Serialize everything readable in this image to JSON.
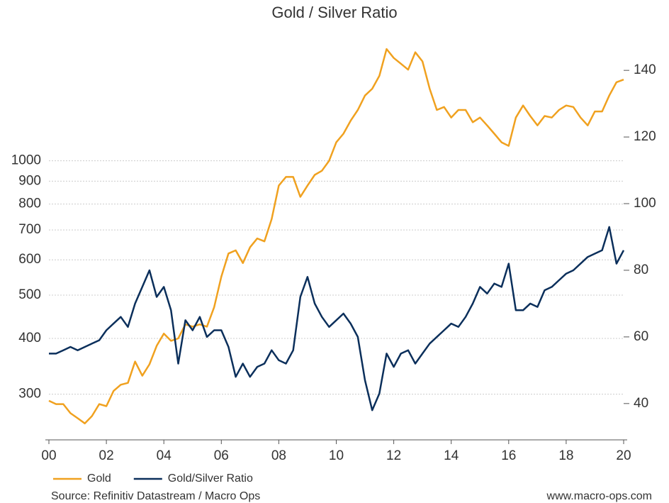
{
  "chart_data": {
    "type": "line",
    "title": "Gold / Silver Ratio",
    "source": "Source: Refinitiv Datastream / Macro Ops",
    "credit": "www.macro-ops.com",
    "x": [
      2000,
      2000.25,
      2000.5,
      2000.75,
      2001,
      2001.25,
      2001.5,
      2001.75,
      2002,
      2002.25,
      2002.5,
      2002.75,
      2003,
      2003.25,
      2003.5,
      2003.75,
      2004,
      2004.25,
      2004.5,
      2004.75,
      2005,
      2005.25,
      2005.5,
      2005.75,
      2006,
      2006.25,
      2006.5,
      2006.75,
      2007,
      2007.25,
      2007.5,
      2007.75,
      2008,
      2008.25,
      2008.5,
      2008.75,
      2009,
      2009.25,
      2009.5,
      2009.75,
      2010,
      2010.25,
      2010.5,
      2010.75,
      2011,
      2011.25,
      2011.5,
      2011.75,
      2012,
      2012.25,
      2012.5,
      2012.75,
      2013,
      2013.25,
      2013.5,
      2013.75,
      2014,
      2014.25,
      2014.5,
      2014.75,
      2015,
      2015.25,
      2015.5,
      2015.75,
      2016,
      2016.25,
      2016.5,
      2016.75,
      2017,
      2017.25,
      2017.5,
      2017.75,
      2018,
      2018.25,
      2018.5,
      2018.75,
      2019,
      2019.25,
      2019.5,
      2019.75,
      2020
    ],
    "xlim": [
      2000,
      2020
    ],
    "xticks": [
      {
        "value": 2000,
        "label": "00"
      },
      {
        "value": 2002,
        "label": "02"
      },
      {
        "value": 2004,
        "label": "04"
      },
      {
        "value": 2006,
        "label": "06"
      },
      {
        "value": 2008,
        "label": "08"
      },
      {
        "value": 2010,
        "label": "10"
      },
      {
        "value": 2012,
        "label": "12"
      },
      {
        "value": 2014,
        "label": "14"
      },
      {
        "value": 2016,
        "label": "16"
      },
      {
        "value": 2018,
        "label": "18"
      },
      {
        "value": 2020,
        "label": "20"
      }
    ],
    "ylim": [
      237,
      1980
    ],
    "ylog": true,
    "yticks": [
      300,
      400,
      500,
      600,
      700,
      800,
      900,
      1000
    ],
    "y2lim": [
      29.1,
      152.6
    ],
    "y2ticks": [
      40,
      60,
      80,
      100,
      120,
      140
    ],
    "grid": true,
    "legend": "bottom-left",
    "series": [
      {
        "name": "Gold",
        "color": "#f0a11f",
        "axis": "y",
        "values": [
          290,
          285,
          285,
          272,
          265,
          258,
          268,
          285,
          282,
          305,
          315,
          318,
          355,
          330,
          350,
          385,
          410,
          395,
          400,
          430,
          425,
          430,
          425,
          470,
          550,
          620,
          630,
          590,
          640,
          670,
          660,
          740,
          880,
          920,
          920,
          830,
          880,
          930,
          950,
          1000,
          1100,
          1150,
          1230,
          1300,
          1400,
          1450,
          1550,
          1780,
          1700,
          1650,
          1600,
          1750,
          1670,
          1450,
          1300,
          1320,
          1250,
          1300,
          1300,
          1220,
          1250,
          1200,
          1150,
          1100,
          1080,
          1250,
          1330,
          1260,
          1200,
          1260,
          1250,
          1300,
          1330,
          1320,
          1250,
          1200,
          1290,
          1290,
          1400,
          1500,
          1520
        ]
      },
      {
        "name": "Gold/Silver Ratio",
        "color": "#0b2f5b",
        "axis": "y2",
        "values": [
          55,
          55,
          56,
          57,
          56,
          57,
          58,
          59,
          62,
          64,
          66,
          63,
          70,
          75,
          80,
          72,
          75,
          68,
          52,
          65,
          62,
          66,
          60,
          62,
          62,
          57,
          48,
          52,
          48,
          51,
          52,
          56,
          53,
          52,
          56,
          72,
          78,
          70,
          66,
          63,
          65,
          67,
          64,
          60,
          47,
          38,
          43,
          55,
          51,
          55,
          56,
          52,
          55,
          58,
          60,
          62,
          64,
          63,
          66,
          70,
          75,
          73,
          76,
          75,
          82,
          68,
          68,
          70,
          69,
          74,
          75,
          77,
          79,
          80,
          82,
          84,
          85,
          86,
          93,
          82,
          86
        ]
      }
    ]
  }
}
